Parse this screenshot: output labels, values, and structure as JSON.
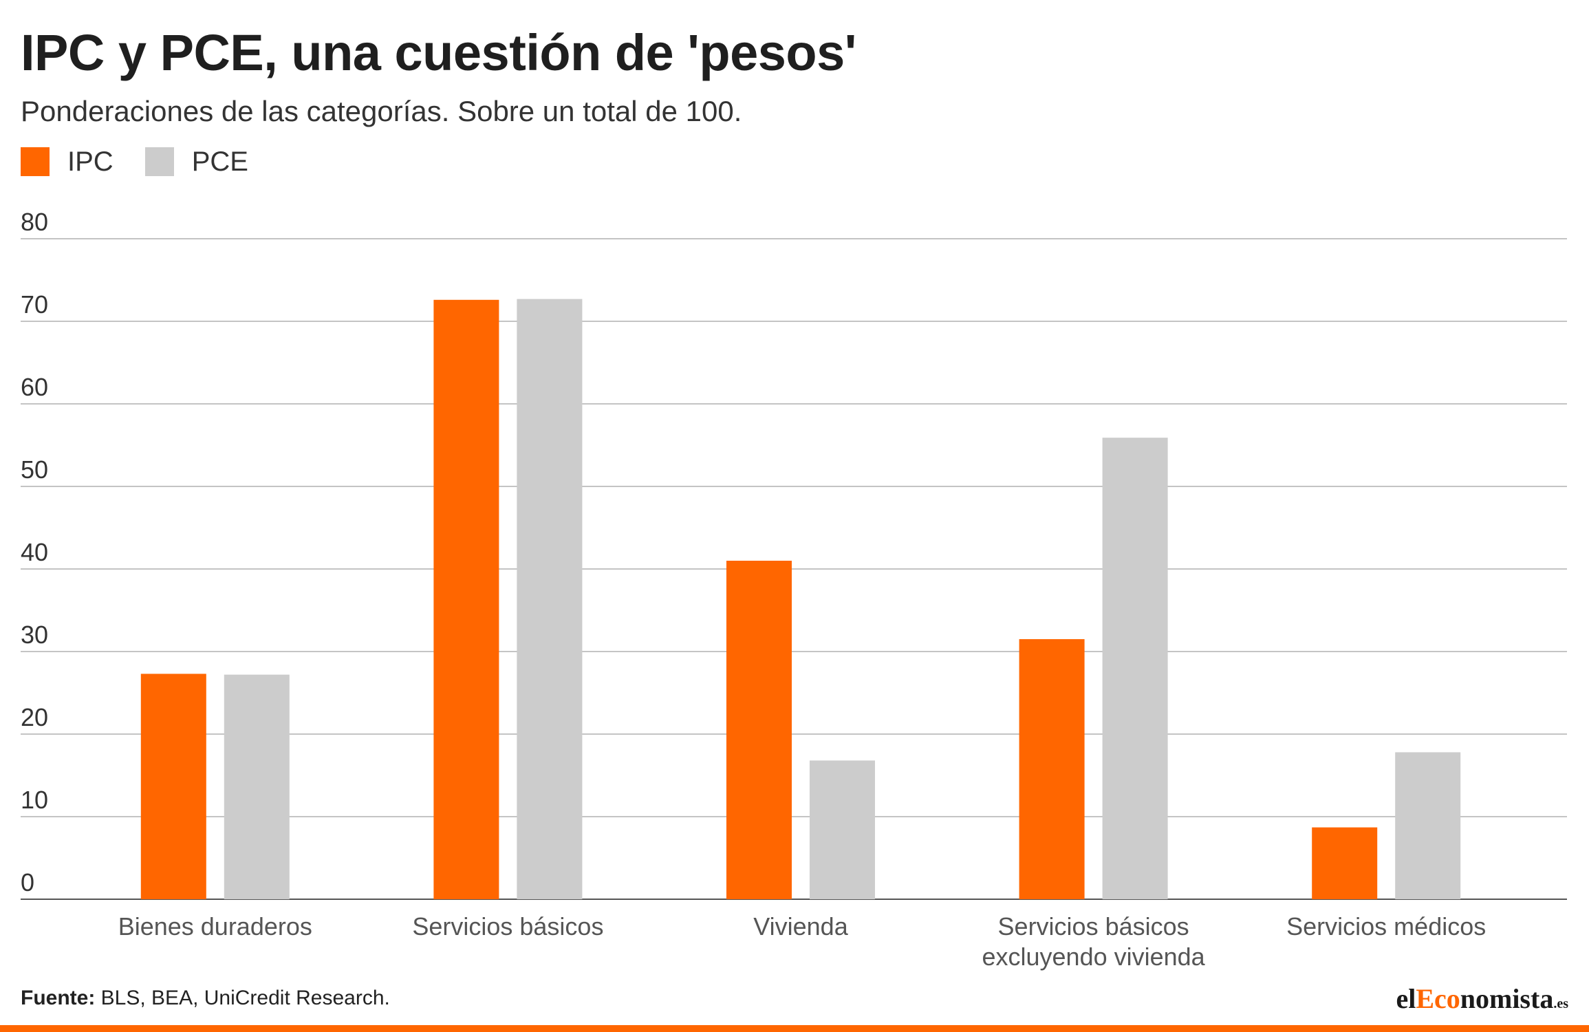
{
  "title": "IPC y PCE, una cuestión de 'pesos'",
  "subtitle": "Ponderaciones de las categorías. Sobre un total de 100.",
  "colors": {
    "ipc": "#ff6600",
    "pce": "#cccccc",
    "grid": "#c4c4c4",
    "axis": "#555555",
    "tick_text": "#333333",
    "bottom_bar": "#ff6600"
  },
  "source": {
    "label": "Fuente:",
    "text": "BLS, BEA, UniCredit Research."
  },
  "brand": {
    "prefix": "el",
    "accent": "Eco",
    "rest": "nomista",
    "tld": ".es"
  },
  "chart_data": {
    "type": "bar",
    "categories": [
      [
        "Bienes duraderos"
      ],
      [
        "Servicios básicos"
      ],
      [
        "Vivienda"
      ],
      [
        "Servicios básicos",
        "excluyendo vivienda"
      ],
      [
        "Servicios médicos"
      ]
    ],
    "series": [
      {
        "name": "IPC",
        "color": "#ff6600",
        "values": [
          27.3,
          72.6,
          41,
          31.5,
          8.7
        ]
      },
      {
        "name": "PCE",
        "color": "#cccccc",
        "values": [
          27.2,
          72.7,
          16.8,
          55.9,
          17.8
        ]
      }
    ],
    "ylim": [
      0,
      80
    ],
    "yticks": [
      0,
      10,
      20,
      30,
      40,
      50,
      60,
      70,
      80
    ],
    "grid": true,
    "legend": "top-left"
  }
}
